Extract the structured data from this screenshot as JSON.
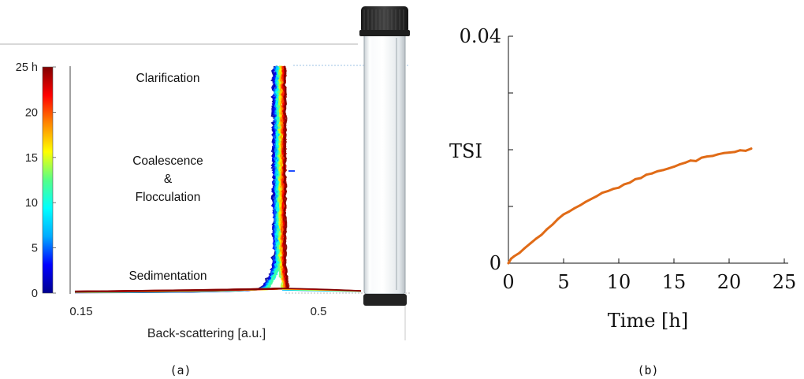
{
  "captions": {
    "a": "(a)",
    "b": "(b)"
  },
  "panel_a": {
    "colorbar": {
      "tick_labels": [
        "25 h",
        "20",
        "15",
        "10",
        "5",
        "0"
      ],
      "tick_values": [
        25,
        20,
        15,
        10,
        5,
        0
      ],
      "colormap": [
        "#00008f",
        "#0000ff",
        "#00aaff",
        "#00ffff",
        "#55ff88",
        "#ffff00",
        "#ff8800",
        "#ff0000",
        "#800000"
      ]
    },
    "xlabel": "Back-scattering [a.u.]",
    "xtick_labels": [
      "0.15",
      "0.5"
    ],
    "annotations": {
      "clarification": "Clarification",
      "coalescence": "Coalescence",
      "ampersand": "&",
      "flocculation": "Flocculation",
      "sedimentation": "Sedimentation"
    },
    "vial": {
      "cap_color": "#2b2b2b",
      "tube_color": "#e9eef1",
      "base_color": "#222222"
    }
  },
  "chart_data": [
    {
      "type": "line",
      "title": "",
      "xlabel": "Time [h]",
      "ylabel": "TSI",
      "xlim": [
        0,
        25
      ],
      "ylim": [
        0,
        0.04
      ],
      "xticks": [
        0,
        5,
        10,
        15,
        20,
        25
      ],
      "xtick_labels": [
        "0",
        "5",
        "10",
        "15",
        "20",
        "25"
      ],
      "ytick_labels": [
        "0",
        "0.04"
      ],
      "line_color": "#e06b17",
      "x": [
        0,
        0.25,
        0.5,
        1,
        1.5,
        2,
        2.5,
        3,
        3.5,
        4,
        4.5,
        5,
        5.5,
        6,
        6.5,
        7,
        7.5,
        8,
        8.5,
        9,
        9.5,
        10,
        10.5,
        11,
        11.5,
        12,
        12.5,
        13,
        13.5,
        14,
        14.5,
        15,
        15.5,
        16,
        16.5,
        17,
        17.5,
        18,
        18.5,
        19,
        19.5,
        20,
        20.5,
        21,
        21.5,
        22
      ],
      "y": [
        0,
        0.0008,
        0.0012,
        0.0018,
        0.0027,
        0.0035,
        0.0043,
        0.005,
        0.006,
        0.0068,
        0.0078,
        0.0086,
        0.0091,
        0.0097,
        0.0102,
        0.0108,
        0.0113,
        0.0118,
        0.0124,
        0.0127,
        0.0131,
        0.0133,
        0.0139,
        0.0142,
        0.0148,
        0.015,
        0.0156,
        0.0158,
        0.0162,
        0.0164,
        0.0167,
        0.017,
        0.0174,
        0.0177,
        0.0181,
        0.018,
        0.0186,
        0.0188,
        0.0189,
        0.0192,
        0.0194,
        0.0195,
        0.0196,
        0.0199,
        0.0198,
        0.0202
      ]
    }
  ]
}
